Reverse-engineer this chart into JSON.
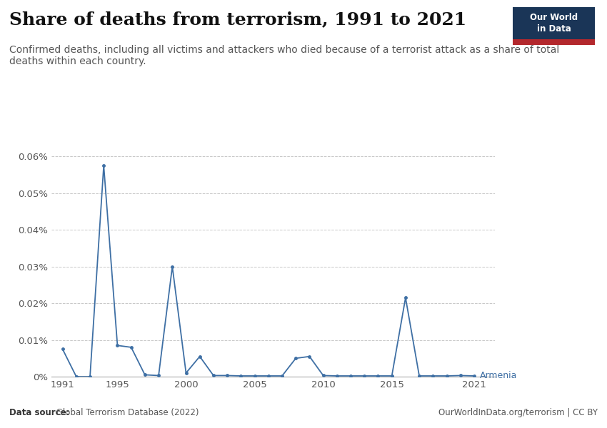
{
  "title": "Share of deaths from terrorism, 1991 to 2021",
  "subtitle": "Confirmed deaths, including all victims and attackers who died because of a terrorist attack as a share of total\ndeaths within each country.",
  "datasource_bold": "Data source:",
  "datasource_rest": " Global Terrorism Database (2022)",
  "url": "OurWorldInData.org/terrorism | CC BY",
  "line_color": "#3e6fa4",
  "line_label": "Armenia",
  "years": [
    1991,
    1992,
    1993,
    1994,
    1995,
    1996,
    1997,
    1998,
    1999,
    2000,
    2001,
    2002,
    2003,
    2004,
    2005,
    2006,
    2007,
    2008,
    2009,
    2010,
    2011,
    2012,
    2013,
    2014,
    2015,
    2016,
    2017,
    2018,
    2019,
    2020,
    2021
  ],
  "values": [
    7.5e-05,
    0.0,
    0.0,
    0.000575,
    8.5e-05,
    8e-05,
    5e-06,
    3e-06,
    0.0003,
    1e-05,
    5.5e-05,
    3e-06,
    3e-06,
    2e-06,
    2e-06,
    2e-06,
    2e-06,
    5e-05,
    5.5e-05,
    3e-06,
    2e-06,
    2e-06,
    2e-06,
    2e-06,
    2e-06,
    0.000215,
    2e-06,
    2e-06,
    2e-06,
    3e-06,
    2e-06
  ],
  "ylim": [
    0,
    0.00063
  ],
  "yticks": [
    0,
    0.0001,
    0.0002,
    0.0003,
    0.0004,
    0.0005,
    0.0006
  ],
  "ytick_labels": [
    "0%",
    "0.01%",
    "0.02%",
    "0.03%",
    "0.04%",
    "0.05%",
    "0.06%"
  ],
  "xticks": [
    1991,
    1995,
    2000,
    2005,
    2010,
    2015,
    2021
  ],
  "xlim": [
    1990.2,
    2022.5
  ],
  "background_color": "#ffffff",
  "grid_color": "#c8c8c8",
  "owid_box_bg": "#1a3557",
  "owid_box_red": "#b3282d",
  "title_fontsize": 18,
  "subtitle_fontsize": 10,
  "axis_fontsize": 9.5
}
